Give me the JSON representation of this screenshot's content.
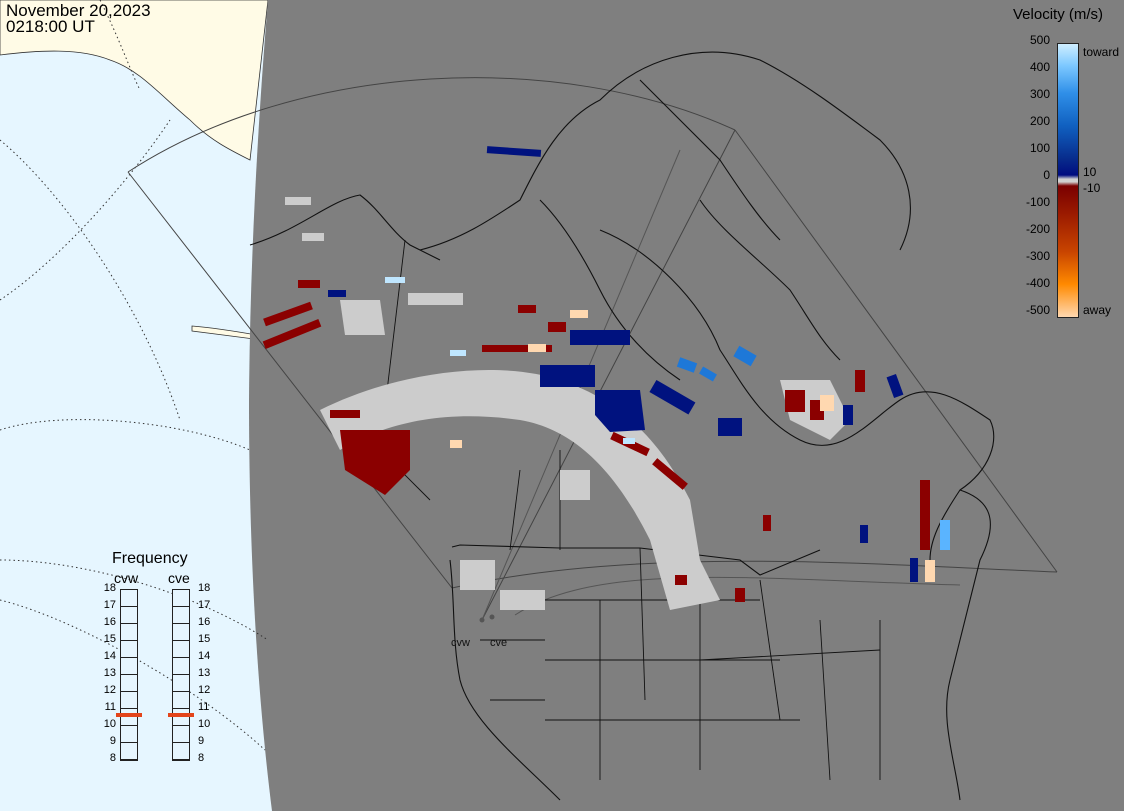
{
  "header": {
    "date": "November 20,2023",
    "time": "0218:00 UT"
  },
  "colorbar": {
    "title": "Velocity (m/s)",
    "left_ticks": [
      "500",
      "400",
      "300",
      "200",
      "100",
      "0",
      "-100",
      "-200",
      "-300",
      "-400",
      "-500"
    ],
    "right_labels": {
      "toward": "toward",
      "pos10": "10",
      "neg10": "-10",
      "away": "away"
    }
  },
  "frequency": {
    "title": "Frequency",
    "channels": [
      "cvw",
      "cve"
    ],
    "scale": [
      "18",
      "17",
      "16",
      "15",
      "14",
      "13",
      "12",
      "11",
      "10",
      "9",
      "8"
    ],
    "selected_mhz": [
      10.6,
      10.6
    ]
  },
  "sites": {
    "west": "cvw",
    "east": "cve"
  },
  "colors": {
    "ocean": "#e6f6ff",
    "land_light": "#fffbe6",
    "night": "#7f7f7f",
    "ground_scatter": "#cccccc",
    "away_dark": "#8b0000",
    "toward_dark": "#00127f",
    "toward_light": "#1e78d8",
    "freq_marker": "#e3451b"
  }
}
